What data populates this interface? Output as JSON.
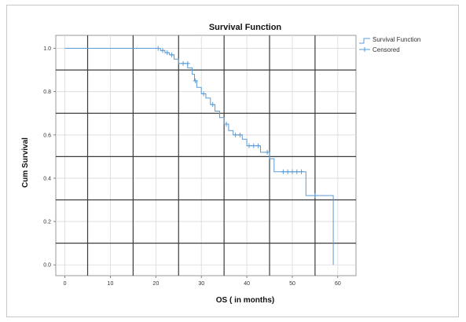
{
  "chart_data": {
    "type": "line",
    "title": "Survival Function",
    "xlabel": "OS ( in months)",
    "ylabel": "Cum Survival",
    "xlim": [
      -2,
      64
    ],
    "ylim": [
      -0.05,
      1.06
    ],
    "xticks": [
      "0",
      "10",
      "20",
      "30",
      "40",
      "50",
      "60"
    ],
    "xtick_values": [
      0,
      10,
      20,
      30,
      40,
      50,
      60
    ],
    "yticks": [
      "0.0",
      "0.2",
      "0.4",
      "0.6",
      "0.8",
      "1.0"
    ],
    "ytick_values": [
      0.0,
      0.2,
      0.4,
      0.6,
      0.8,
      1.0
    ],
    "major_gridlines_x": [
      5,
      15,
      25,
      35,
      45,
      55
    ],
    "major_gridlines_y": [
      0.1,
      0.3,
      0.5,
      0.7,
      0.9
    ],
    "legend_position": "right-top",
    "series": [
      {
        "name": "Survival Function",
        "color": "#5b9bd5",
        "step_points": [
          [
            0,
            1.0
          ],
          [
            21,
            1.0
          ],
          [
            21,
            0.99
          ],
          [
            22,
            0.99
          ],
          [
            22,
            0.98
          ],
          [
            23,
            0.98
          ],
          [
            23,
            0.97
          ],
          [
            24,
            0.97
          ],
          [
            24,
            0.95
          ],
          [
            25,
            0.95
          ],
          [
            25,
            0.93
          ],
          [
            27,
            0.93
          ],
          [
            27,
            0.91
          ],
          [
            28,
            0.91
          ],
          [
            28,
            0.88
          ],
          [
            28.5,
            0.88
          ],
          [
            28.5,
            0.85
          ],
          [
            29,
            0.85
          ],
          [
            29,
            0.82
          ],
          [
            30,
            0.82
          ],
          [
            30,
            0.79
          ],
          [
            31,
            0.79
          ],
          [
            31,
            0.77
          ],
          [
            32,
            0.77
          ],
          [
            32,
            0.74
          ],
          [
            33,
            0.74
          ],
          [
            33,
            0.71
          ],
          [
            34,
            0.71
          ],
          [
            34,
            0.68
          ],
          [
            35,
            0.68
          ],
          [
            35,
            0.65
          ],
          [
            36,
            0.65
          ],
          [
            36,
            0.62
          ],
          [
            37,
            0.62
          ],
          [
            37,
            0.6
          ],
          [
            39,
            0.6
          ],
          [
            39,
            0.58
          ],
          [
            40,
            0.58
          ],
          [
            40,
            0.55
          ],
          [
            43,
            0.55
          ],
          [
            43,
            0.52
          ],
          [
            45,
            0.52
          ],
          [
            45,
            0.49
          ],
          [
            46,
            0.49
          ],
          [
            46,
            0.43
          ],
          [
            53,
            0.43
          ],
          [
            53,
            0.32
          ],
          [
            59,
            0.32
          ],
          [
            59,
            0.0
          ]
        ]
      },
      {
        "name": "Censored",
        "color": "#5b9bd5",
        "marker": "+",
        "points": [
          [
            20.5,
            1.0
          ],
          [
            21.5,
            0.99
          ],
          [
            22.5,
            0.98
          ],
          [
            23.5,
            0.97
          ],
          [
            26,
            0.93
          ],
          [
            27,
            0.93
          ],
          [
            28.7,
            0.85
          ],
          [
            30.5,
            0.79
          ],
          [
            32.5,
            0.74
          ],
          [
            35.5,
            0.65
          ],
          [
            37.5,
            0.6
          ],
          [
            38.5,
            0.6
          ],
          [
            40.5,
            0.55
          ],
          [
            41.5,
            0.55
          ],
          [
            42.5,
            0.55
          ],
          [
            44.5,
            0.52
          ],
          [
            48,
            0.43
          ],
          [
            49,
            0.43
          ],
          [
            50,
            0.43
          ],
          [
            51,
            0.43
          ],
          [
            52,
            0.43
          ],
          [
            55,
            0.32
          ]
        ]
      }
    ]
  }
}
